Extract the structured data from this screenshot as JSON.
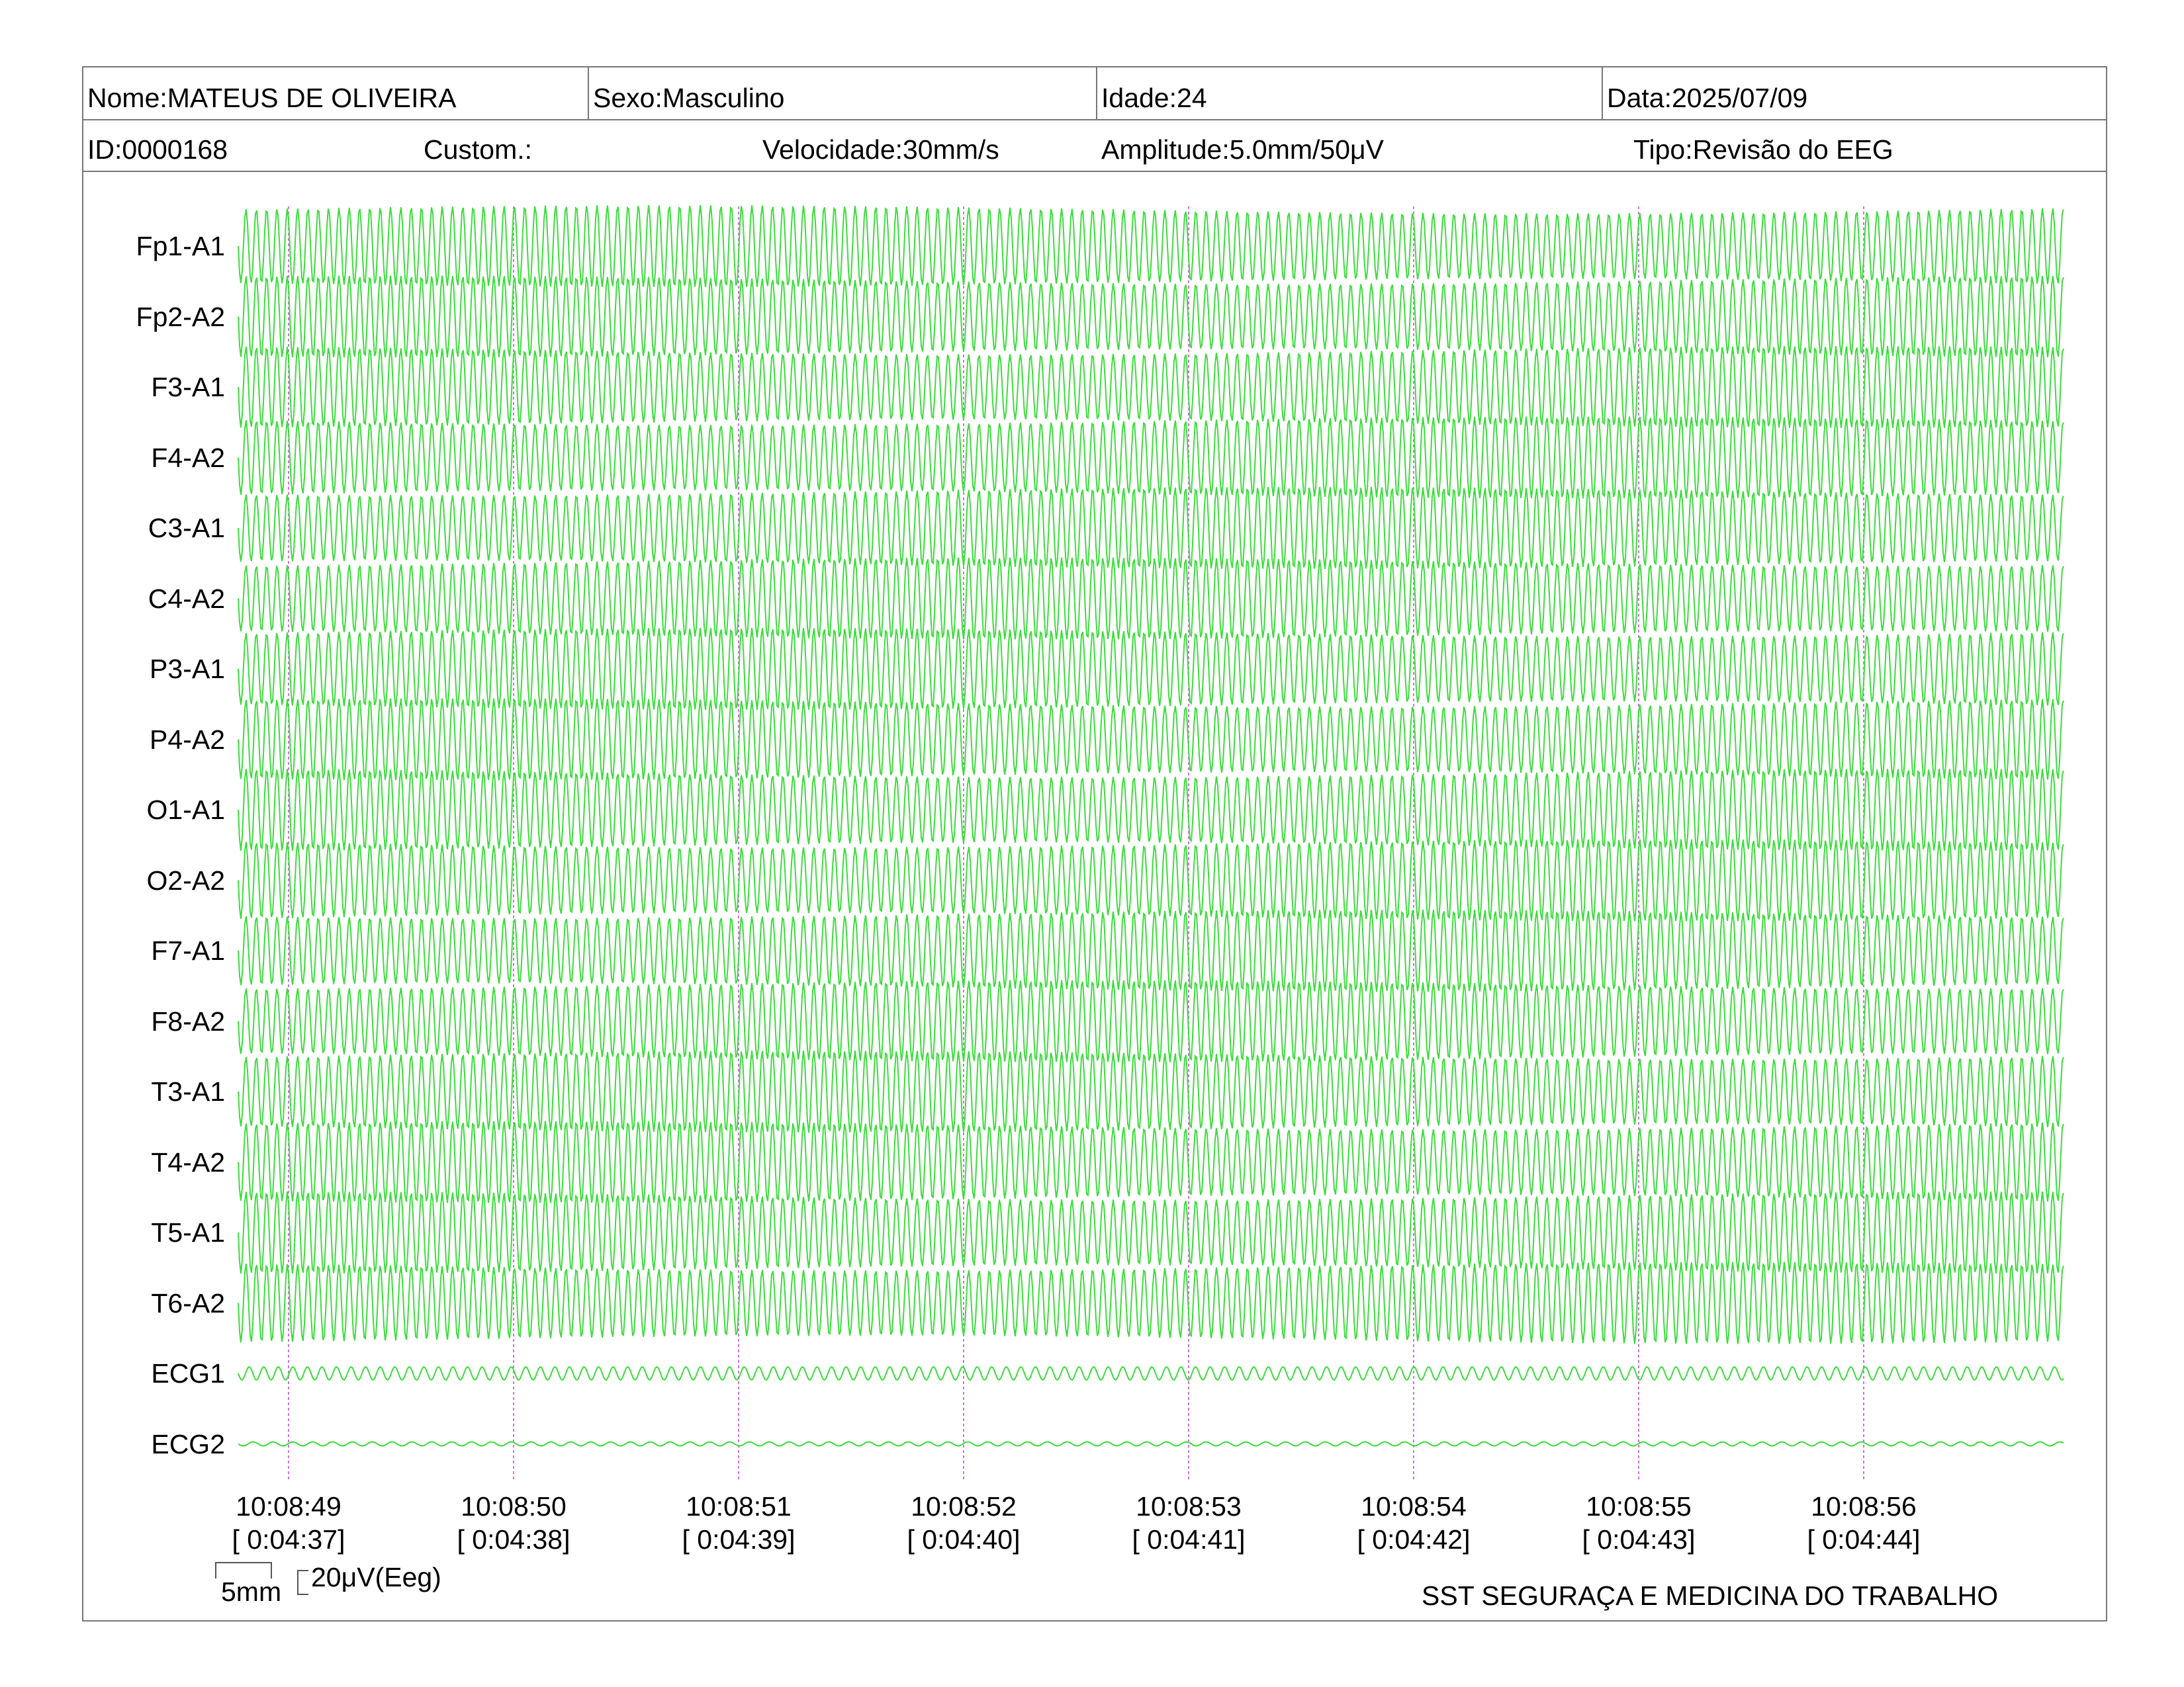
{
  "header": {
    "nome": "Nome:MATEUS DE OLIVEIRA",
    "sexo": "Sexo:Masculino",
    "idade": "Idade:24",
    "data": "Data:2025/07/09",
    "id": "ID:0000168",
    "custom": "Custom.:",
    "velocidade": "Velocidade:30mm/s",
    "amplitude": "Amplitude:5.0mm/50μV",
    "tipo": "Tipo:Revisão do EEG"
  },
  "channels": [
    "Fp1-A1",
    "Fp2-A2",
    "F3-A1",
    "F4-A2",
    "C3-A1",
    "C4-A2",
    "P3-A1",
    "P4-A2",
    "O1-A1",
    "O2-A2",
    "F7-A1",
    "F8-A2",
    "T3-A1",
    "T4-A2",
    "T5-A1",
    "T6-A2",
    "ECG1",
    "ECG2"
  ],
  "time_marks": [
    {
      "clock": "10:08:49",
      "elapsed": "[ 0:04:37]"
    },
    {
      "clock": "10:08:50",
      "elapsed": "[ 0:04:38]"
    },
    {
      "clock": "10:08:51",
      "elapsed": "[ 0:04:39]"
    },
    {
      "clock": "10:08:52",
      "elapsed": "[ 0:04:40]"
    },
    {
      "clock": "10:08:53",
      "elapsed": "[ 0:04:41]"
    },
    {
      "clock": "10:08:54",
      "elapsed": "[ 0:04:42]"
    },
    {
      "clock": "10:08:55",
      "elapsed": "[ 0:04:43]"
    },
    {
      "clock": "10:08:56",
      "elapsed": "[ 0:04:44]"
    }
  ],
  "calibration": {
    "time_scale": "5mm",
    "amp_scale": "20μV(Eeg)"
  },
  "footer": {
    "company": "SST SEGURAÇA E MEDICINA DO TRABALHO"
  },
  "colors": {
    "trace": "#3ddc3d",
    "marker": "#d070e0",
    "border": "#777777"
  }
}
